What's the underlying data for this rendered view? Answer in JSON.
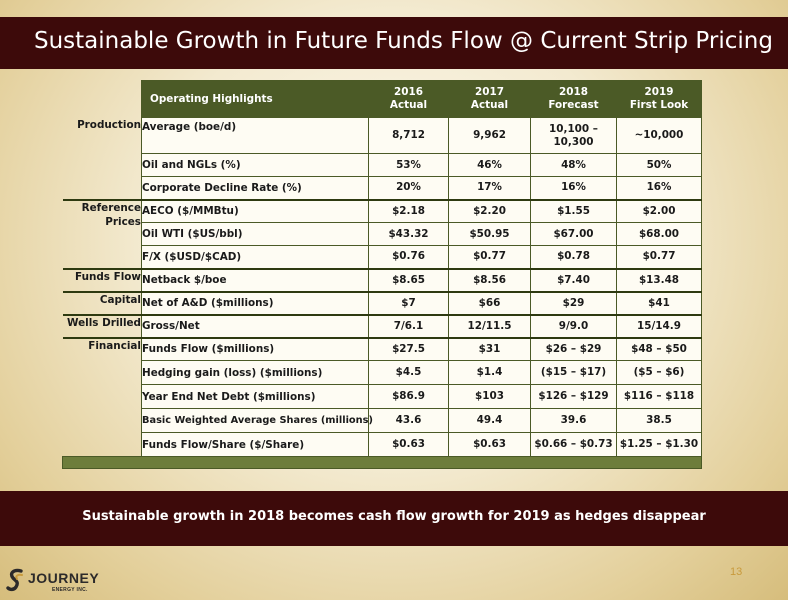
{
  "title": "Sustainable Growth in Future Funds Flow @ Current Strip Pricing",
  "table": {
    "corner_label": "Operating Highlights",
    "columns": [
      {
        "year": "2016",
        "kind": "Actual"
      },
      {
        "year": "2017",
        "kind": "Actual"
      },
      {
        "year": "2018",
        "kind": "Forecast"
      },
      {
        "year": "2019",
        "kind": "First Look"
      }
    ],
    "rows": [
      {
        "section": "Production",
        "metric": "Average (boe/d)",
        "values": [
          "8,712",
          "9,962",
          "10,100 – 10,300",
          "~10,000"
        ]
      },
      {
        "section": "",
        "metric": "Oil and NGLs (%)",
        "values": [
          "53%",
          "46%",
          "48%",
          "50%"
        ]
      },
      {
        "section": "",
        "metric": "Corporate Decline Rate (%)",
        "values": [
          "20%",
          "17%",
          "16%",
          "16%"
        ]
      },
      {
        "section": "Reference Prices",
        "metric": "AECO ($/MMBtu)",
        "values": [
          "$2.18",
          "$2.20",
          "$1.55",
          "$2.00"
        ]
      },
      {
        "section": "",
        "metric": "Oil WTI ($US/bbl)",
        "values": [
          "$43.32",
          "$50.95",
          "$67.00",
          "$68.00"
        ]
      },
      {
        "section": "",
        "metric": "F/X ($USD/$CAD)",
        "values": [
          "$0.76",
          "$0.77",
          "$0.78",
          "$0.77"
        ]
      },
      {
        "section": "Funds Flow",
        "metric": "Netback $/boe",
        "values": [
          "$8.65",
          "$8.56",
          "$7.40",
          "$13.48"
        ]
      },
      {
        "section": "Capital",
        "metric": "Net of A&D ($millions)",
        "values": [
          "$7",
          "$66",
          "$29",
          "$41"
        ]
      },
      {
        "section": "Wells Drilled",
        "metric": "Gross/Net",
        "values": [
          "7/6.1",
          "12/11.5",
          "9/9.0",
          "15/14.9"
        ]
      },
      {
        "section": "Financial",
        "metric": "Funds Flow ($millions)",
        "values": [
          "$27.5",
          "$31",
          "$26 – $29",
          "$48 – $50"
        ]
      },
      {
        "section": "",
        "metric": "Hedging gain (loss) ($millions)",
        "values": [
          "$4.5",
          "$1.4",
          "($15 – $17)",
          "($5 – $6)"
        ]
      },
      {
        "section": "",
        "metric": "Year End Net Debt ($millions)",
        "values": [
          "$86.9",
          "$103",
          "$126 – $129",
          "$116 – $118"
        ]
      },
      {
        "section": "",
        "metric": "Basic Weighted Average Shares (millions)",
        "values": [
          "43.6",
          "49.4",
          "39.6",
          "38.5"
        ]
      },
      {
        "section": "",
        "metric": "Funds Flow/Share ($/Share)",
        "values": [
          "$0.63",
          "$0.63",
          "$0.66 – $0.73",
          "$1.25 – $1.30"
        ]
      }
    ]
  },
  "banner": "Sustainable growth in 2018  becomes cash flow growth for 2019 as hedges disappear",
  "page_number": "13",
  "logo": {
    "name": "JOURNEY",
    "sub": "ENERGY INC."
  },
  "colors": {
    "dark_band": "#3d0a0a",
    "table_header": "#4b5a26",
    "page_number": "#c89a3c"
  }
}
